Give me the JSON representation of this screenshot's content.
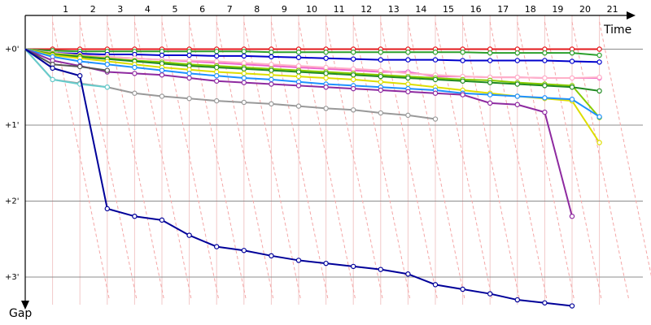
{
  "chart_data": {
    "type": "line",
    "xlabel": "Time",
    "ylabel": "Gap",
    "x_ticks": [
      "1",
      "2",
      "3",
      "4",
      "5",
      "6",
      "7",
      "8",
      "9",
      "10",
      "11",
      "12",
      "13",
      "14",
      "15",
      "16",
      "17",
      "18",
      "19",
      "20",
      "21"
    ],
    "y_ticks": [
      "+0'",
      "+1'",
      "+2'",
      "+3'"
    ],
    "xlim": [
      0,
      22
    ],
    "ylim": [
      0,
      3.4
    ],
    "grid": {
      "x": true,
      "y": true
    },
    "pit_connector_color": "#f4a6a6",
    "series": [
      {
        "color": "#e31a1c",
        "y": [
          0,
          0,
          0,
          0,
          0,
          0,
          0,
          0,
          0,
          0,
          0,
          0,
          0,
          0,
          0,
          0,
          0,
          0,
          0,
          0,
          0,
          0
        ]
      },
      {
        "color": "#2ca02c",
        "y": [
          0,
          0.02,
          0.03,
          0.03,
          0.03,
          0.03,
          0.03,
          0.03,
          0.03,
          0.04,
          0.04,
          0.04,
          0.04,
          0.04,
          0.04,
          0.04,
          0.04,
          0.05,
          0.05,
          0.05,
          0.05,
          0.08
        ]
      },
      {
        "color": "#0000cc",
        "y": [
          0,
          0.05,
          0.06,
          0.07,
          0.07,
          0.08,
          0.08,
          0.09,
          0.09,
          0.1,
          0.11,
          0.12,
          0.13,
          0.14,
          0.14,
          0.14,
          0.15,
          0.15,
          0.15,
          0.15,
          0.16,
          0.17
        ]
      },
      {
        "color": "#ee66cc",
        "y": [
          0,
          0.06,
          0.08,
          0.1,
          0.12,
          0.14,
          0.16,
          0.18,
          0.2,
          0.22,
          0.24,
          0.26,
          0.28,
          0.3,
          0.3,
          0.36,
          0.36,
          0.37,
          0.37,
          0.38,
          0.38,
          0.38
        ]
      },
      {
        "color": "#ffb0c8",
        "y": [
          0,
          0.05,
          0.08,
          0.1,
          0.12,
          0.14,
          0.15,
          0.16,
          0.18,
          0.2,
          0.22,
          0.24,
          0.26,
          0.28,
          0.32,
          0.34,
          0.36,
          0.37,
          0.37,
          0.38,
          0.38,
          0.37
        ]
      },
      {
        "color": "#88cc00",
        "y": [
          0,
          0.06,
          0.09,
          0.12,
          0.15,
          0.17,
          0.2,
          0.22,
          0.24,
          0.26,
          0.28,
          0.3,
          0.32,
          0.34,
          0.36,
          0.38,
          0.4,
          0.41,
          0.44,
          0.46,
          0.48,
          0.9
        ]
      },
      {
        "color": "#228b22",
        "y": [
          0,
          0.07,
          0.1,
          0.13,
          0.16,
          0.19,
          0.22,
          0.24,
          0.26,
          0.28,
          0.3,
          0.32,
          0.34,
          0.36,
          0.38,
          0.4,
          0.42,
          0.44,
          0.46,
          0.48,
          0.5,
          0.55
        ]
      },
      {
        "color": "#dddd00",
        "y": [
          0,
          0.08,
          0.12,
          0.16,
          0.2,
          0.24,
          0.27,
          0.3,
          0.32,
          0.34,
          0.36,
          0.38,
          0.4,
          0.43,
          0.46,
          0.5,
          0.54,
          0.58,
          0.62,
          0.65,
          0.68,
          1.23
        ]
      },
      {
        "color": "#1e90ff",
        "y": [
          0,
          0.1,
          0.16,
          0.2,
          0.24,
          0.28,
          0.32,
          0.35,
          0.38,
          0.4,
          0.43,
          0.46,
          0.48,
          0.5,
          0.52,
          0.54,
          0.58,
          0.6,
          0.62,
          0.64,
          0.66,
          0.89
        ]
      },
      {
        "color": "#8e2aa0",
        "y": [
          0,
          0.15,
          0.22,
          0.3,
          0.32,
          0.34,
          0.38,
          0.42,
          0.44,
          0.46,
          0.48,
          0.5,
          0.52,
          0.54,
          0.56,
          0.58,
          0.6,
          0.71,
          0.73,
          0.83,
          2.2
        ]
      },
      {
        "color": "#555555",
        "y": [
          0,
          0.2,
          0.23,
          0.28
        ]
      },
      {
        "color": "#999999",
        "y": [
          0,
          0.4,
          0.45,
          0.5,
          0.58,
          0.62,
          0.65,
          0.68,
          0.7,
          0.72,
          0.75,
          0.78,
          0.8,
          0.84,
          0.87,
          0.92
        ]
      },
      {
        "color": "#66cccc",
        "y": [
          0,
          0.4,
          0.46,
          0.5
        ]
      },
      {
        "color": "#000099",
        "y": [
          0,
          0.25,
          0.35,
          2.1,
          2.2,
          2.25,
          2.45,
          2.6,
          2.65,
          2.72,
          2.78,
          2.82,
          2.86,
          2.9,
          2.96,
          3.1,
          3.16,
          3.22,
          3.3,
          3.34,
          3.38
        ]
      }
    ]
  }
}
